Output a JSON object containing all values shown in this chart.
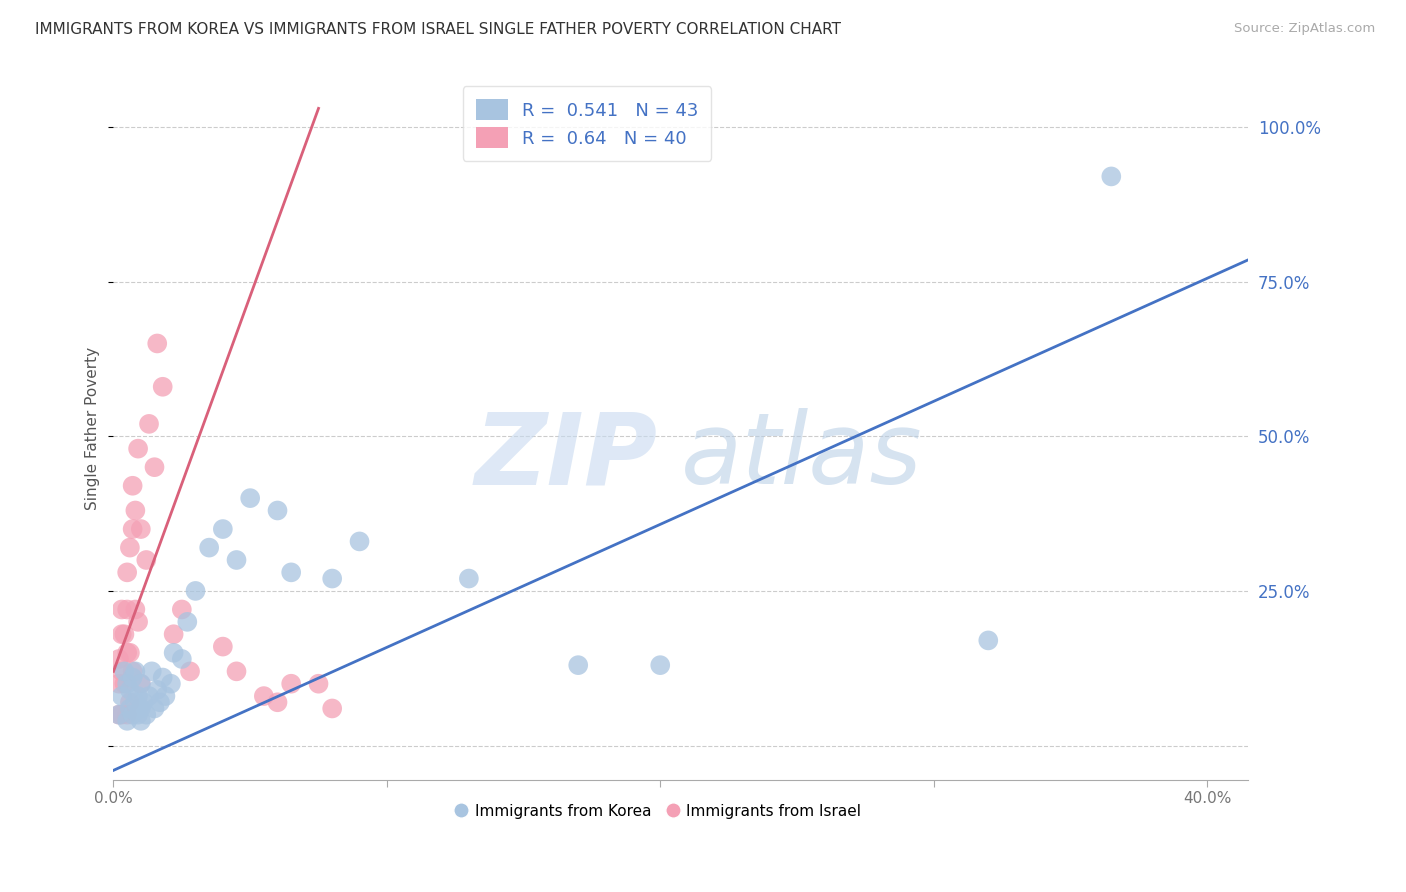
{
  "title": "IMMIGRANTS FROM KOREA VS IMMIGRANTS FROM ISRAEL SINGLE FATHER POVERTY CORRELATION CHART",
  "source": "Source: ZipAtlas.com",
  "ylabel": "Single Father Poverty",
  "yticks": [
    0.0,
    0.25,
    0.5,
    0.75,
    1.0
  ],
  "ytick_labels": [
    "",
    "25.0%",
    "50.0%",
    "75.0%",
    "100.0%"
  ],
  "xticks": [
    0.0,
    0.1,
    0.2,
    0.3,
    0.4
  ],
  "xlim": [
    0.0,
    0.415
  ],
  "ylim": [
    -0.055,
    1.08
  ],
  "korea_R": 0.541,
  "korea_N": 43,
  "israel_R": 0.64,
  "israel_N": 40,
  "korea_color": "#a8c4e0",
  "israel_color": "#f4a0b5",
  "korea_line_color": "#4472c4",
  "israel_line_color": "#d9607a",
  "legend_korea_label": "Immigrants from Korea",
  "legend_israel_label": "Immigrants from Israel",
  "watermark_zip": "ZIP",
  "watermark_atlas": "atlas",
  "watermark_color_zip": "#c5d8ec",
  "watermark_color_atlas": "#b8cfe8",
  "korea_line_x": [
    0.0,
    0.415
  ],
  "korea_line_y": [
    -0.04,
    0.785
  ],
  "israel_line_x": [
    0.0,
    0.075
  ],
  "israel_line_y": [
    0.12,
    1.03
  ],
  "korea_x": [
    0.002,
    0.003,
    0.004,
    0.005,
    0.005,
    0.006,
    0.006,
    0.007,
    0.007,
    0.008,
    0.008,
    0.009,
    0.009,
    0.01,
    0.01,
    0.01,
    0.011,
    0.012,
    0.013,
    0.014,
    0.015,
    0.016,
    0.017,
    0.018,
    0.019,
    0.021,
    0.022,
    0.025,
    0.027,
    0.03,
    0.035,
    0.04,
    0.045,
    0.05,
    0.06,
    0.065,
    0.08,
    0.09,
    0.13,
    0.17,
    0.2,
    0.32,
    0.365
  ],
  "korea_y": [
    0.05,
    0.08,
    0.12,
    0.04,
    0.1,
    0.06,
    0.09,
    0.05,
    0.11,
    0.07,
    0.12,
    0.05,
    0.08,
    0.04,
    0.06,
    0.1,
    0.07,
    0.05,
    0.08,
    0.12,
    0.06,
    0.09,
    0.07,
    0.11,
    0.08,
    0.1,
    0.15,
    0.14,
    0.2,
    0.25,
    0.32,
    0.35,
    0.3,
    0.4,
    0.38,
    0.28,
    0.27,
    0.33,
    0.27,
    0.13,
    0.13,
    0.17,
    0.92
  ],
  "israel_x": [
    0.002,
    0.002,
    0.002,
    0.003,
    0.003,
    0.003,
    0.003,
    0.004,
    0.004,
    0.005,
    0.005,
    0.005,
    0.005,
    0.006,
    0.006,
    0.006,
    0.007,
    0.007,
    0.007,
    0.008,
    0.008,
    0.009,
    0.009,
    0.01,
    0.01,
    0.012,
    0.013,
    0.015,
    0.016,
    0.018,
    0.022,
    0.025,
    0.028,
    0.04,
    0.045,
    0.055,
    0.06,
    0.065,
    0.075,
    0.08
  ],
  "israel_y": [
    0.05,
    0.1,
    0.14,
    0.05,
    0.12,
    0.18,
    0.22,
    0.1,
    0.18,
    0.05,
    0.15,
    0.22,
    0.28,
    0.07,
    0.15,
    0.32,
    0.12,
    0.35,
    0.42,
    0.22,
    0.38,
    0.2,
    0.48,
    0.1,
    0.35,
    0.3,
    0.52,
    0.45,
    0.65,
    0.58,
    0.18,
    0.22,
    0.12,
    0.16,
    0.12,
    0.08,
    0.07,
    0.1,
    0.1,
    0.06
  ]
}
